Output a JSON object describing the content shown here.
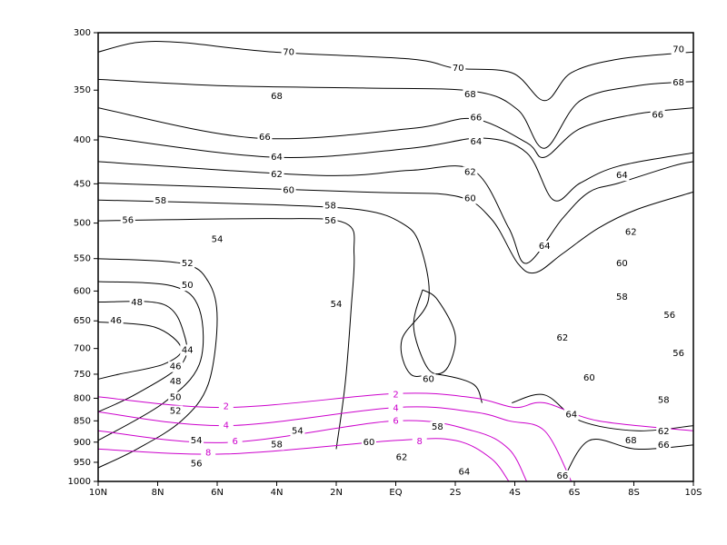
{
  "chart_data": {
    "type": "contour",
    "xlim": [
      10,
      -10
    ],
    "xticks": [
      {
        "value": 10,
        "label": "10N"
      },
      {
        "value": 8,
        "label": "8N"
      },
      {
        "value": 6,
        "label": "6N"
      },
      {
        "value": 4,
        "label": "4N"
      },
      {
        "value": 2,
        "label": "2N"
      },
      {
        "value": 0,
        "label": "EQ"
      },
      {
        "value": -2,
        "label": "2S"
      },
      {
        "value": -4,
        "label": "4S"
      },
      {
        "value": -6,
        "label": "6S"
      },
      {
        "value": -8,
        "label": "8S"
      },
      {
        "value": -10,
        "label": "10S"
      }
    ],
    "ylim": [
      1000,
      300
    ],
    "yticks": [
      300,
      350,
      400,
      450,
      500,
      550,
      600,
      650,
      700,
      750,
      800,
      850,
      900,
      950,
      1000
    ],
    "y_log_scale": true,
    "contours": [
      {
        "level": 70,
        "color": "#000000",
        "x": [
          10,
          8.7,
          7.2,
          4.1,
          -0.5,
          -2,
          -3.9,
          -5,
          -5.9,
          -7.5,
          -10
        ],
        "y": [
          316,
          308,
          308,
          316,
          322,
          330,
          334,
          360,
          334,
          322,
          316
        ]
      },
      {
        "level": 68,
        "color": "#000000",
        "x": [
          10,
          5.7,
          1.1,
          -2.6,
          -4.1,
          -5,
          -6.2,
          -8.1,
          -10
        ],
        "y": [
          340,
          346,
          348,
          351,
          369,
          409,
          360,
          346,
          342
        ]
      },
      {
        "level": 66,
        "color": "#000000",
        "x": [
          10,
          4.7,
          -0.5,
          -2.6,
          -4.4,
          -5,
          -6.2,
          -8.1,
          -10
        ],
        "y": [
          367,
          398,
          388,
          378,
          403,
          419,
          388,
          373,
          367
        ]
      },
      {
        "level": 64,
        "color": "#000000",
        "x": [
          10,
          4.1,
          -0.5,
          -2.9,
          -4.4,
          -5.3,
          -6.2,
          -7.5,
          -10
        ],
        "y": [
          396,
          419,
          409,
          398,
          414,
          470,
          449,
          429,
          414
        ]
      },
      {
        "level": 62,
        "color": "#000000",
        "x": [
          10,
          2.6,
          -0.5,
          -2.6,
          -3.8,
          -4.4,
          -5.6,
          -6.5,
          -7.5,
          -9.3,
          -10
        ],
        "y": [
          424,
          440,
          434,
          434,
          507,
          557,
          494,
          460,
          449,
          429,
          424
        ]
      },
      {
        "level": 60,
        "color": "#000000",
        "x": [
          10,
          1.1,
          -2,
          -3.2,
          -4.1,
          -4.7,
          -5.6,
          -6.8,
          -8.1,
          -10
        ],
        "y": [
          449,
          460,
          465,
          494,
          557,
          571,
          543,
          507,
          482,
          460
        ]
      },
      {
        "level": 58,
        "color": "#000000",
        "x": [
          10,
          4.1,
          1.1,
          -0.2,
          -0.8,
          -1.1,
          -0.2,
          -0.5,
          -1.4,
          -2.6,
          -2.9
        ],
        "y": [
          470,
          476,
          483,
          500,
          529,
          614,
          684,
          750,
          750,
          770,
          810
        ]
      },
      {
        "level": 56,
        "color": "#000000",
        "x": [
          10,
          4.1,
          1.7,
          1.4,
          1.5,
          1.7,
          2
        ],
        "y": [
          497,
          494,
          500,
          543,
          629,
          770,
          917
        ]
      },
      {
        "level": 52,
        "color": "#000000",
        "x": [
          10,
          7.2,
          6.3,
          6,
          6.3,
          7.2,
          8.7,
          10
        ],
        "y": [
          550,
          557,
          585,
          647,
          770,
          850,
          917,
          964
        ]
      },
      {
        "level": 50,
        "color": "#000000",
        "x": [
          10,
          7.5,
          6.6,
          6.6,
          7.8,
          10
        ],
        "y": [
          585,
          592,
          630,
          730,
          810,
          896
        ]
      },
      {
        "level": 48,
        "color": "#000000",
        "x": [
          10,
          7.8,
          7.1,
          7.2,
          8.7,
          10
        ],
        "y": [
          618,
          622,
          676,
          730,
          790,
          830
        ]
      },
      {
        "level": 46,
        "color": "#000000",
        "x": [
          10,
          8.1,
          7.2,
          7.8,
          9.3,
          10
        ],
        "y": [
          652,
          661,
          700,
          730,
          750,
          760
        ]
      },
      {
        "level": 60,
        "color": "#000000",
        "x": [
          -0.9,
          -0.6,
          -1.1,
          -1.7,
          -2,
          -1.4,
          -0.9
        ],
        "y": [
          598,
          661,
          740,
          740,
          676,
          614,
          598
        ]
      },
      {
        "level": 64,
        "color": "#000000",
        "x": [
          -3.9,
          -5,
          -6.2,
          -8.1,
          -10
        ],
        "y": [
          810,
          793,
          850,
          873,
          861
        ]
      },
      {
        "level": 66,
        "color": "#000000",
        "x": [
          -5.6,
          -6.5,
          -8.1,
          -10
        ],
        "y": [
          1000,
          896,
          917,
          907
        ]
      },
      {
        "level": 2,
        "color": "#cc00cc",
        "x": [
          10,
          5.7,
          0,
          -2.6,
          -4,
          -5,
          -6.8,
          -10
        ],
        "y": [
          797,
          820,
          790,
          799,
          820,
          810,
          850,
          873
        ]
      },
      {
        "level": 4,
        "color": "#cc00cc",
        "x": [
          10,
          5.7,
          0,
          -2.6,
          -3.8,
          -5,
          -5.9
        ],
        "y": [
          830,
          861,
          820,
          830,
          850,
          873,
          1000
        ]
      },
      {
        "level": 6,
        "color": "#cc00cc",
        "x": [
          10,
          5.7,
          0,
          -2.6,
          -3.8,
          -4.4
        ],
        "y": [
          873,
          901,
          850,
          873,
          917,
          1000
        ]
      },
      {
        "level": 8,
        "color": "#cc00cc",
        "x": [
          10,
          5.7,
          0,
          -2,
          -3.2,
          -3.8
        ],
        "y": [
          917,
          929,
          896,
          896,
          940,
          1000
        ]
      }
    ],
    "label_sets": [
      {
        "color": "#000000",
        "values": [
          70,
          70,
          70,
          68,
          68,
          68,
          66,
          66,
          66,
          64,
          64,
          64,
          64,
          62,
          62,
          62,
          60,
          60,
          60,
          60,
          58,
          58,
          58,
          56,
          56,
          56,
          54,
          54,
          52,
          50,
          48,
          46,
          44,
          46,
          48,
          50,
          52,
          54,
          56,
          54,
          58,
          60,
          62,
          58,
          64,
          66,
          64,
          62,
          60,
          58,
          56,
          62,
          66,
          68
        ],
        "x": [
          3.6,
          -2.1,
          -9.5,
          4,
          -2.5,
          -9.5,
          4.4,
          -2.7,
          -8.8,
          4,
          -2.7,
          -7.6,
          -5,
          4,
          -2.5,
          -7.9,
          3.6,
          -2.5,
          -7.6,
          -1.1,
          7.9,
          2.2,
          -7.6,
          9,
          2.2,
          -9.2,
          6,
          2,
          7,
          7,
          8.7,
          9.4,
          7,
          7.4,
          7.4,
          7.4,
          7.4,
          6.7,
          6.7,
          3.3,
          4,
          0.9,
          -0.2,
          -1.4,
          -2.3,
          -5.6,
          -5.9,
          -5.6,
          -6.5,
          -9,
          -9.5,
          -9,
          -9,
          -7.9
        ],
        "y": [
          316,
          330,
          314,
          356,
          354,
          343,
          397,
          377,
          374,
          419,
          402,
          440,
          532,
          439,
          436,
          512,
          458,
          468,
          557,
          760,
          471,
          477,
          610,
          496,
          497,
          640,
          522,
          622,
          557,
          591,
          619,
          650,
          703,
          735,
          765,
          798,
          828,
          896,
          954,
          873,
          906,
          901,
          938,
          864,
          975,
          985,
          836,
          680,
          757,
          804,
          709,
          875,
          907,
          896
        ]
      },
      {
        "color": "#cc00cc",
        "values": [
          2,
          2,
          4,
          4,
          6,
          6,
          8,
          8
        ],
        "x": [
          5.7,
          0,
          5.7,
          0,
          5.4,
          0,
          6.3,
          -0.8
        ],
        "y": [
          818,
          792,
          861,
          822,
          898,
          850,
          926,
          898
        ]
      }
    ]
  }
}
